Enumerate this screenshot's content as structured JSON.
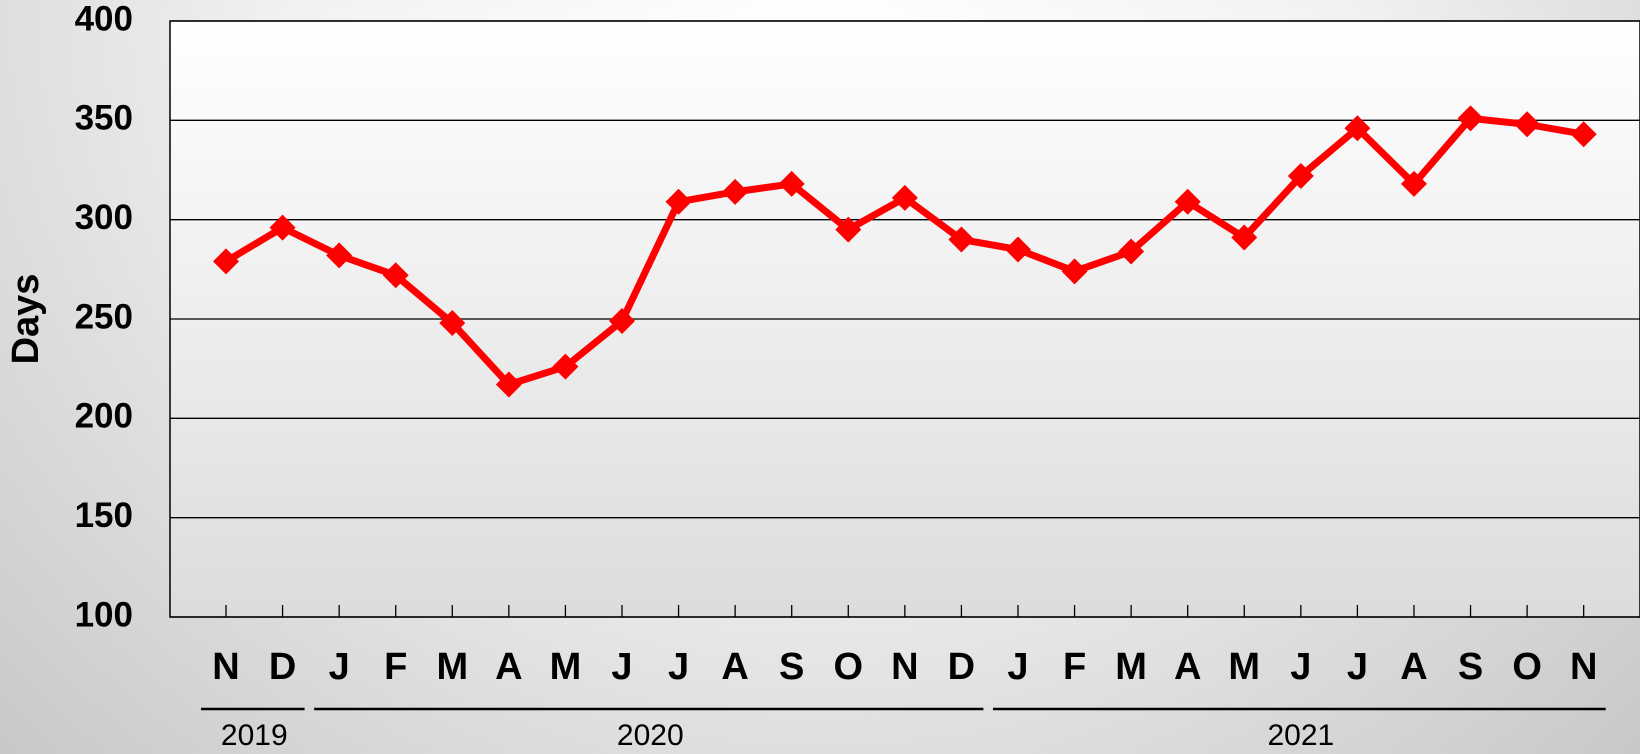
{
  "chart_data": {
    "type": "line",
    "y_label": "Days",
    "categories": [
      "N",
      "D",
      "J",
      "F",
      "M",
      "A",
      "M",
      "J",
      "J",
      "A",
      "S",
      "O",
      "N",
      "D",
      "J",
      "F",
      "M",
      "A",
      "M",
      "J",
      "J",
      "A",
      "S",
      "O",
      "N"
    ],
    "year_groups": [
      {
        "label": "2019",
        "count": 2
      },
      {
        "label": "2020",
        "count": 12
      },
      {
        "label": "2021",
        "count": 11
      }
    ],
    "series": [
      {
        "name": "Days",
        "color": "#ff0000",
        "values": [
          279,
          296,
          282,
          272,
          248,
          217,
          226,
          249,
          309,
          314,
          318,
          295,
          311,
          290,
          285,
          274,
          284,
          309,
          291,
          322,
          346,
          318,
          351,
          348,
          343
        ]
      }
    ],
    "ylim": [
      100,
      400
    ],
    "yticks": [
      100,
      150,
      200,
      250,
      300,
      350,
      400
    ],
    "grid": true
  }
}
